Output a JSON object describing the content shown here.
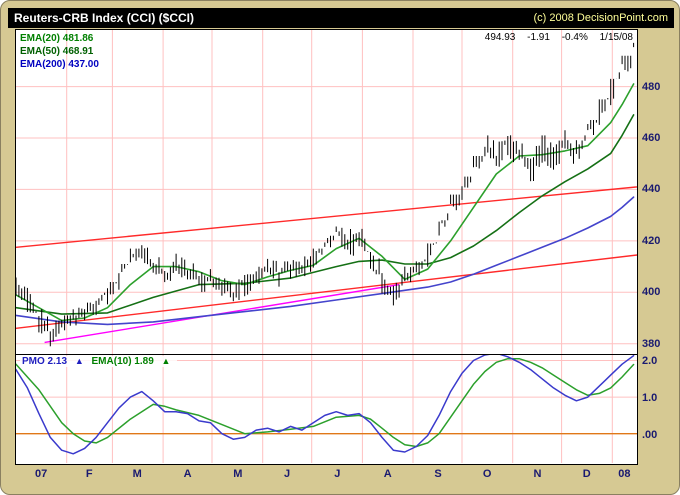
{
  "header": {
    "title": "Reuters-CRB Index (CCI) ($CCI)",
    "copyright": "(c) 2008 DecisionPoint.com"
  },
  "quote": {
    "last": "494.93",
    "change": "-1.91",
    "change_pct": "-0.4%",
    "date": "1/15/08"
  },
  "legend": {
    "ema20": "EMA(20) 481.86",
    "ema50": "EMA(50) 468.91",
    "ema200": "EMA(200) 437.00"
  },
  "pmo_legend": {
    "pmo": "PMO  2.13",
    "ema10": "EMA(10)  1.89",
    "arrow": "▲"
  },
  "chart_data": {
    "type": "line",
    "subtype": "daily-ohlc-bars-with-ema-overlays-and-pmo-oscillator",
    "title": "Reuters-CRB Index (CCI) ($CCI)",
    "x_axis": {
      "week_max": 54.3,
      "labels": [
        "07",
        "F",
        "M",
        "A",
        "M",
        "J",
        "J",
        "A",
        "S",
        "O",
        "N",
        "D",
        "08"
      ],
      "label_weeks": [
        2.2,
        6.4,
        10.6,
        15.0,
        19.4,
        23.7,
        28.1,
        32.5,
        36.9,
        41.2,
        45.6,
        49.9,
        53.2
      ],
      "month_weeks": [
        4.43,
        8.43,
        12.86,
        17.14,
        21.57,
        25.86,
        30.29,
        34.71,
        39.0,
        43.43,
        47.71,
        52.14
      ]
    },
    "price_axis": {
      "ticks": [
        380,
        400,
        420,
        440,
        460,
        480
      ],
      "range": [
        376,
        502
      ]
    },
    "price_weekly": [
      [
        0,
        397,
        406,
        403
      ],
      [
        1,
        392,
        404,
        396
      ],
      [
        2,
        384,
        397,
        388
      ],
      [
        3,
        379,
        389,
        383
      ],
      [
        4,
        381,
        391,
        388
      ],
      [
        5,
        384,
        394,
        391
      ],
      [
        6,
        387,
        396,
        392
      ],
      [
        7,
        389,
        399,
        396
      ],
      [
        8,
        393,
        404,
        400
      ],
      [
        9,
        398,
        411,
        407
      ],
      [
        10,
        405,
        417,
        414
      ],
      [
        11,
        410,
        421,
        417
      ],
      [
        12,
        406,
        419,
        410
      ],
      [
        13,
        402,
        413,
        407
      ],
      [
        14,
        405,
        415,
        412
      ],
      [
        15,
        405,
        414,
        408
      ],
      [
        16,
        400,
        410,
        404
      ],
      [
        17,
        401,
        409,
        406
      ],
      [
        18,
        398,
        408,
        402
      ],
      [
        19,
        395,
        405,
        400
      ],
      [
        20,
        397,
        407,
        404
      ],
      [
        21,
        401,
        410,
        407
      ],
      [
        22,
        404,
        413,
        410
      ],
      [
        23,
        402,
        412,
        407
      ],
      [
        24,
        404,
        414,
        411
      ],
      [
        25,
        405,
        414,
        409
      ],
      [
        26,
        407,
        417,
        414
      ],
      [
        27,
        411,
        422,
        419
      ],
      [
        28,
        416,
        427,
        424
      ],
      [
        29,
        414,
        426,
        419
      ],
      [
        30,
        416,
        426,
        422
      ],
      [
        31,
        407,
        423,
        413
      ],
      [
        32,
        399,
        415,
        405
      ],
      [
        33,
        393,
        407,
        397
      ],
      [
        34,
        395,
        410,
        406
      ],
      [
        35,
        401,
        412,
        409
      ],
      [
        36,
        406,
        419,
        416
      ],
      [
        37,
        413,
        428,
        425
      ],
      [
        38,
        423,
        438,
        434
      ],
      [
        39,
        430,
        445,
        441
      ],
      [
        40,
        438,
        453,
        449
      ],
      [
        41,
        446,
        461,
        456
      ],
      [
        42,
        444,
        459,
        451
      ],
      [
        43,
        449,
        463,
        459
      ],
      [
        44,
        448,
        461,
        454
      ],
      [
        45,
        443,
        457,
        448
      ],
      [
        46,
        447,
        461,
        457
      ],
      [
        47,
        446,
        459,
        452
      ],
      [
        48,
        450,
        463,
        459
      ],
      [
        49,
        448,
        461,
        454
      ],
      [
        50,
        452,
        467,
        463
      ],
      [
        51,
        460,
        475,
        471
      ],
      [
        52,
        466,
        483,
        479
      ],
      [
        53,
        474,
        492,
        488
      ],
      [
        54,
        483,
        497,
        494.93
      ]
    ],
    "ema20": [
      [
        0,
        399
      ],
      [
        2,
        394
      ],
      [
        4,
        389
      ],
      [
        6,
        390
      ],
      [
        8,
        394
      ],
      [
        10,
        403
      ],
      [
        12,
        410
      ],
      [
        14,
        410
      ],
      [
        16,
        408
      ],
      [
        18,
        404.5
      ],
      [
        20,
        403
      ],
      [
        22,
        406
      ],
      [
        24,
        408.5
      ],
      [
        26,
        410.5
      ],
      [
        28,
        417
      ],
      [
        30,
        421
      ],
      [
        32,
        414
      ],
      [
        34,
        405
      ],
      [
        36,
        409
      ],
      [
        38,
        420
      ],
      [
        40,
        433
      ],
      [
        42,
        446
      ],
      [
        44,
        453
      ],
      [
        46,
        453.5
      ],
      [
        48,
        455
      ],
      [
        50,
        457
      ],
      [
        52,
        466
      ],
      [
        53,
        473
      ],
      [
        54,
        481
      ]
    ],
    "ema50": [
      [
        0,
        394
      ],
      [
        4,
        391.5
      ],
      [
        8,
        392
      ],
      [
        12,
        398
      ],
      [
        16,
        403
      ],
      [
        20,
        403.5
      ],
      [
        24,
        405.5
      ],
      [
        28,
        410
      ],
      [
        30,
        412
      ],
      [
        32,
        412.5
      ],
      [
        34,
        411
      ],
      [
        36,
        411
      ],
      [
        38,
        413.5
      ],
      [
        40,
        418
      ],
      [
        42,
        424
      ],
      [
        44,
        431
      ],
      [
        46,
        437.5
      ],
      [
        48,
        443
      ],
      [
        50,
        448
      ],
      [
        52,
        454
      ],
      [
        53,
        461
      ],
      [
        54,
        469
      ]
    ],
    "ema200": [
      [
        0,
        391
      ],
      [
        4,
        388.5
      ],
      [
        8,
        387.5
      ],
      [
        12,
        388.5
      ],
      [
        16,
        390.5
      ],
      [
        20,
        392.5
      ],
      [
        24,
        394.5
      ],
      [
        28,
        397
      ],
      [
        32,
        399.5
      ],
      [
        36,
        402
      ],
      [
        38,
        404
      ],
      [
        40,
        407
      ],
      [
        42,
        410.5
      ],
      [
        44,
        414
      ],
      [
        46,
        417.5
      ],
      [
        48,
        421
      ],
      [
        50,
        425
      ],
      [
        52,
        429.5
      ],
      [
        53,
        433
      ],
      [
        54,
        437
      ]
    ],
    "trendlines": [
      {
        "name": "upper-channel",
        "color": "#FF2A2A",
        "from": [
          0,
          417.5
        ],
        "to": [
          54.3,
          441
        ]
      },
      {
        "name": "lower-channel",
        "color": "#FF2A2A",
        "from": [
          0,
          386
        ],
        "to": [
          54.3,
          414.5
        ]
      },
      {
        "name": "magenta-support",
        "color": "#FF00FF",
        "from": [
          2.5,
          380.5
        ],
        "to": [
          33.5,
          403
        ]
      }
    ],
    "pmo_axis": {
      "ticks": [
        "2.0",
        "1.0",
        ".00"
      ],
      "tick_values": [
        2.0,
        1.0,
        0.0
      ],
      "range": [
        -0.8,
        2.15
      ]
    },
    "pmo": [
      [
        0,
        1.75
      ],
      [
        1,
        1.25
      ],
      [
        2,
        0.55
      ],
      [
        3,
        -0.1
      ],
      [
        4,
        -0.45
      ],
      [
        5,
        -0.55
      ],
      [
        6,
        -0.4
      ],
      [
        7,
        -0.1
      ],
      [
        8,
        0.3
      ],
      [
        9,
        0.7
      ],
      [
        10,
        1.0
      ],
      [
        11,
        1.15
      ],
      [
        12,
        0.9
      ],
      [
        13,
        0.6
      ],
      [
        14,
        0.6
      ],
      [
        15,
        0.55
      ],
      [
        16,
        0.35
      ],
      [
        17,
        0.3
      ],
      [
        18,
        0.0
      ],
      [
        19,
        -0.15
      ],
      [
        20,
        -0.1
      ],
      [
        21,
        0.1
      ],
      [
        22,
        0.15
      ],
      [
        23,
        0.05
      ],
      [
        24,
        0.2
      ],
      [
        25,
        0.1
      ],
      [
        26,
        0.3
      ],
      [
        27,
        0.5
      ],
      [
        28,
        0.6
      ],
      [
        29,
        0.5
      ],
      [
        30,
        0.55
      ],
      [
        31,
        0.3
      ],
      [
        32,
        -0.1
      ],
      [
        33,
        -0.45
      ],
      [
        34,
        -0.5
      ],
      [
        35,
        -0.35
      ],
      [
        36,
        -0.05
      ],
      [
        37,
        0.5
      ],
      [
        38,
        1.15
      ],
      [
        39,
        1.65
      ],
      [
        40,
        2.0
      ],
      [
        41,
        2.15
      ],
      [
        42,
        2.2
      ],
      [
        43,
        2.1
      ],
      [
        44,
        1.95
      ],
      [
        45,
        1.75
      ],
      [
        46,
        1.5
      ],
      [
        47,
        1.25
      ],
      [
        48,
        1.05
      ],
      [
        49,
        0.9
      ],
      [
        50,
        1.0
      ],
      [
        51,
        1.3
      ],
      [
        52,
        1.6
      ],
      [
        53,
        1.9
      ],
      [
        54,
        2.13
      ]
    ],
    "pmo_ema10": [
      [
        0,
        1.9
      ],
      [
        2,
        1.2
      ],
      [
        4,
        0.3
      ],
      [
        5,
        0.0
      ],
      [
        6,
        -0.2
      ],
      [
        7,
        -0.25
      ],
      [
        8,
        -0.1
      ],
      [
        10,
        0.4
      ],
      [
        12,
        0.8
      ],
      [
        13,
        0.75
      ],
      [
        14,
        0.65
      ],
      [
        16,
        0.5
      ],
      [
        18,
        0.25
      ],
      [
        20,
        0.0
      ],
      [
        22,
        0.05
      ],
      [
        24,
        0.12
      ],
      [
        26,
        0.2
      ],
      [
        28,
        0.45
      ],
      [
        30,
        0.5
      ],
      [
        31,
        0.4
      ],
      [
        32,
        0.15
      ],
      [
        33,
        -0.1
      ],
      [
        34,
        -0.3
      ],
      [
        35,
        -0.35
      ],
      [
        36,
        -0.25
      ],
      [
        37,
        0.0
      ],
      [
        38,
        0.45
      ],
      [
        39,
        0.9
      ],
      [
        40,
        1.35
      ],
      [
        41,
        1.7
      ],
      [
        42,
        1.95
      ],
      [
        43,
        2.05
      ],
      [
        44,
        2.05
      ],
      [
        45,
        1.95
      ],
      [
        46,
        1.8
      ],
      [
        47,
        1.6
      ],
      [
        48,
        1.4
      ],
      [
        49,
        1.2
      ],
      [
        50,
        1.05
      ],
      [
        51,
        1.1
      ],
      [
        52,
        1.25
      ],
      [
        53,
        1.55
      ],
      [
        54,
        1.89
      ]
    ],
    "colors": {
      "background_tan": "#D6C993",
      "grid": "#FFC0C0",
      "bars": "#000000",
      "ema20": "#2CA02C",
      "ema50": "#157015",
      "ema200": "#4444CC",
      "pmo": "#3A3ACC",
      "pmo_ema10": "#2CA02C",
      "zero_line": "#E07818",
      "trend_red": "#FF2A2A",
      "trend_magenta": "#FF00FF",
      "axis_text": "#1A1A70"
    }
  }
}
